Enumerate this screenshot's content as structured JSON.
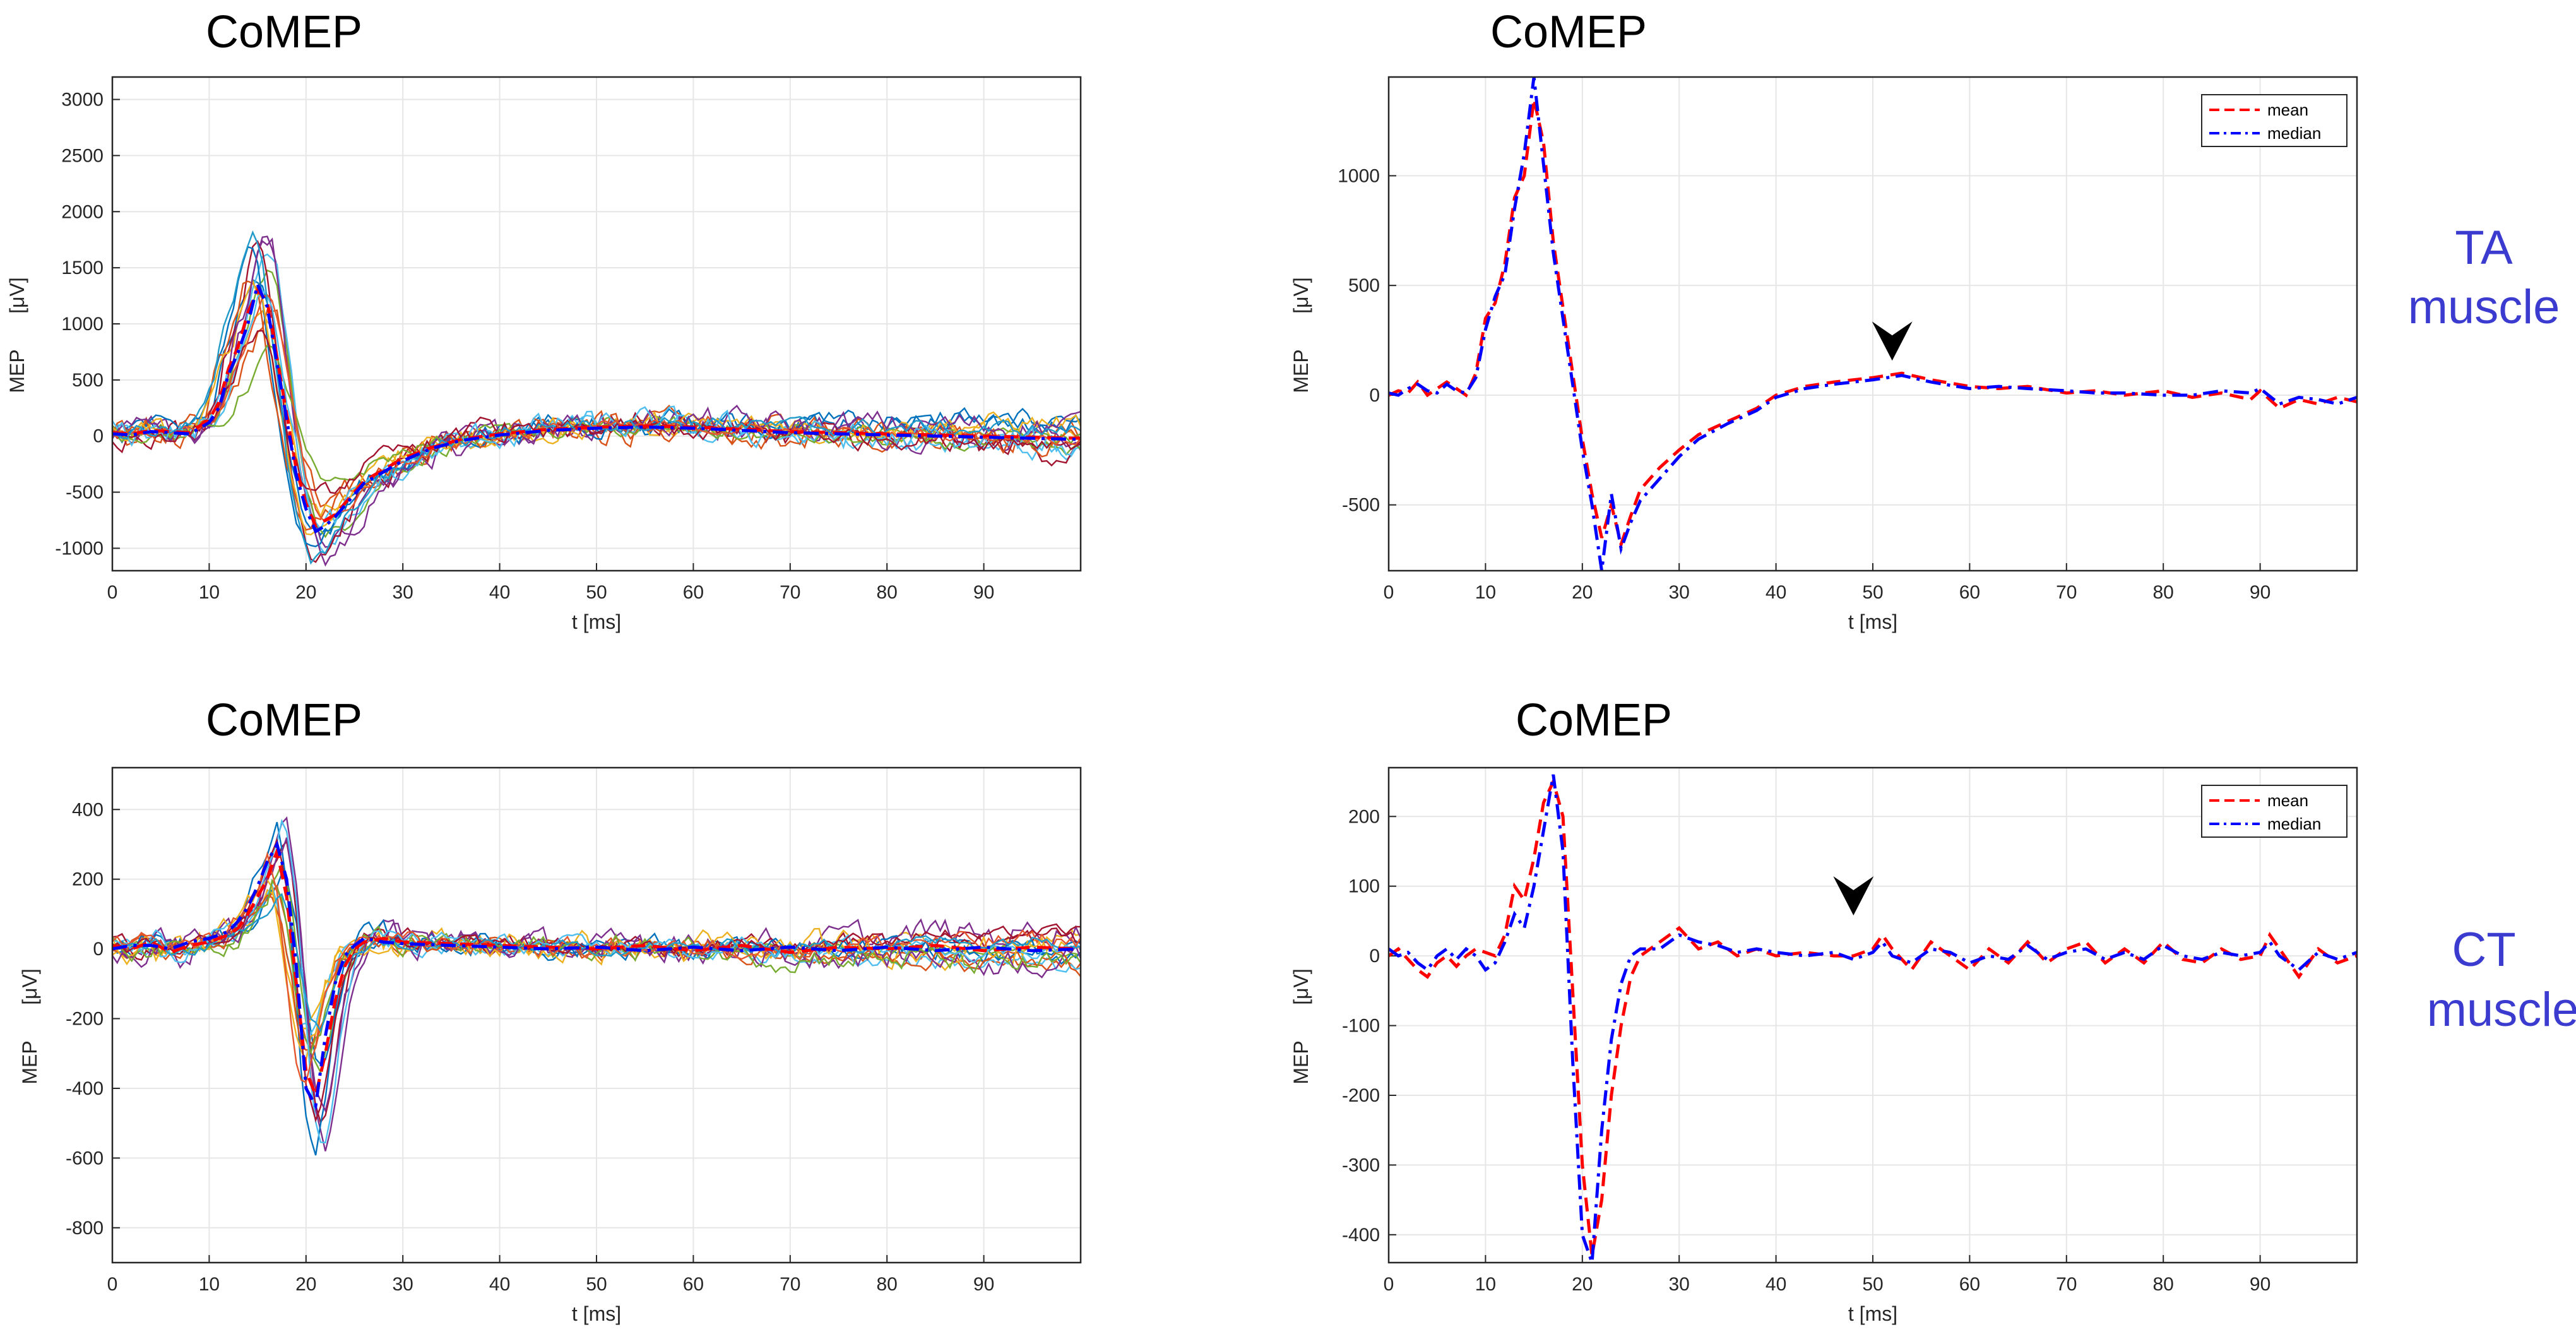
{
  "chart_data": [
    {
      "type": "line",
      "title": "CoMEP",
      "xlabel": "t [ms]",
      "ylabel": "MEP",
      "yunit": "[μV]",
      "xlim": [
        0,
        100
      ],
      "ylim": [
        -1200,
        3200
      ],
      "xticks": [
        0,
        10,
        20,
        30,
        40,
        50,
        60,
        70,
        80,
        90
      ],
      "yticks": [
        -1000,
        -500,
        0,
        500,
        1000,
        1500,
        2000,
        2500,
        3000
      ],
      "grid": true,
      "trace_colors": [
        "#0072bd",
        "#d95319",
        "#edb120",
        "#7e2f8e",
        "#77ac30",
        "#4dbeee",
        "#a2142f",
        "#0072bd",
        "#d95319",
        "#edb120",
        "#7e2f8e",
        "#77ac30",
        "#4dbeee",
        "#a2142f",
        "#e4572e",
        "#1f9ac9"
      ],
      "series": [
        {
          "name": "mean",
          "style": "dashed",
          "color": "#ff0000",
          "x": [
            0,
            2,
            4,
            6,
            8,
            10,
            11,
            12,
            13,
            14,
            15,
            16,
            17,
            18,
            19,
            20,
            21,
            22,
            23,
            24,
            25,
            26,
            28,
            30,
            33,
            36,
            40,
            45,
            50,
            55,
            60,
            65,
            70,
            75,
            80,
            85,
            90,
            95,
            100
          ],
          "y": [
            30,
            20,
            50,
            40,
            30,
            150,
            300,
            600,
            800,
            1100,
            1300,
            1200,
            700,
            200,
            -300,
            -600,
            -800,
            -750,
            -700,
            -600,
            -500,
            -400,
            -300,
            -200,
            -100,
            -30,
            20,
            60,
            80,
            90,
            80,
            60,
            40,
            30,
            20,
            10,
            0,
            -10,
            -20
          ]
        },
        {
          "name": "median",
          "style": "dashdot",
          "color": "#0000ff",
          "x": [
            0,
            2,
            4,
            6,
            8,
            10,
            11,
            12,
            13,
            14,
            15,
            16,
            17,
            18,
            19,
            20,
            21,
            22,
            23,
            24,
            25,
            26,
            28,
            30,
            33,
            36,
            40,
            45,
            50,
            55,
            60,
            65,
            70,
            75,
            80,
            85,
            90,
            95,
            100
          ],
          "y": [
            20,
            10,
            40,
            30,
            20,
            120,
            250,
            550,
            750,
            1000,
            1350,
            1150,
            650,
            150,
            -350,
            -650,
            -850,
            -800,
            -720,
            -620,
            -520,
            -420,
            -320,
            -220,
            -110,
            -40,
            10,
            50,
            70,
            80,
            70,
            50,
            30,
            20,
            10,
            0,
            -10,
            -20,
            -30
          ]
        }
      ]
    },
    {
      "type": "line",
      "title": "CoMEP",
      "xlabel": "t [ms]",
      "ylabel": "MEP",
      "yunit": "[μV]",
      "xlim": [
        0,
        100
      ],
      "ylim": [
        -800,
        1450
      ],
      "xticks": [
        0,
        10,
        20,
        30,
        40,
        50,
        60,
        70,
        80,
        90
      ],
      "yticks": [
        -500,
        0,
        500,
        1000
      ],
      "grid": true,
      "legend": [
        "mean",
        "median"
      ],
      "legend_location": "top-right",
      "annotations": [
        {
          "type": "arrowhead",
          "x": 52,
          "y": 100
        }
      ],
      "series": [
        {
          "name": "mean",
          "style": "dashed",
          "color": "#ff0000",
          "x": [
            0,
            1,
            2,
            3,
            4,
            5,
            6,
            7,
            8,
            9,
            10,
            11,
            12,
            13,
            14,
            15,
            16,
            17,
            18,
            19,
            20,
            21,
            22,
            23,
            24,
            25,
            26,
            28,
            30,
            32,
            35,
            38,
            40,
            43,
            46,
            50,
            53,
            56,
            60,
            63,
            66,
            70,
            73,
            76,
            80,
            83,
            86,
            89,
            90,
            92,
            94,
            96,
            98,
            100
          ],
          "y": [
            0,
            20,
            10,
            60,
            0,
            30,
            60,
            30,
            0,
            100,
            350,
            420,
            600,
            900,
            1000,
            1350,
            1150,
            700,
            400,
            100,
            -200,
            -450,
            -650,
            -500,
            -680,
            -550,
            -430,
            -330,
            -250,
            -180,
            -120,
            -60,
            0,
            40,
            60,
            80,
            100,
            70,
            40,
            30,
            40,
            10,
            20,
            0,
            20,
            -10,
            10,
            -20,
            20,
            -60,
            -20,
            -40,
            -10,
            -30
          ]
        },
        {
          "name": "median",
          "style": "dashdot",
          "color": "#0000ff",
          "x": [
            0,
            1,
            2,
            3,
            4,
            5,
            6,
            7,
            8,
            9,
            10,
            11,
            12,
            13,
            14,
            15,
            16,
            17,
            18,
            19,
            20,
            21,
            22,
            23,
            24,
            25,
            26,
            28,
            30,
            32,
            35,
            38,
            40,
            43,
            46,
            50,
            53,
            56,
            60,
            63,
            66,
            70,
            73,
            76,
            80,
            83,
            86,
            89,
            90,
            92,
            94,
            96,
            98,
            100
          ],
          "y": [
            10,
            0,
            30,
            50,
            20,
            10,
            50,
            20,
            10,
            80,
            300,
            450,
            550,
            850,
            1100,
            1450,
            1050,
            650,
            350,
            50,
            -250,
            -500,
            -800,
            -450,
            -700,
            -580,
            -480,
            -380,
            -280,
            -200,
            -130,
            -70,
            -10,
            30,
            50,
            70,
            90,
            60,
            30,
            40,
            30,
            20,
            10,
            10,
            0,
            0,
            20,
            10,
            30,
            -40,
            -10,
            -20,
            -40,
            -10
          ]
        }
      ]
    },
    {
      "type": "line",
      "title": "CoMEP",
      "xlabel": "t [ms]",
      "ylabel": "MEP",
      "yunit": "[μV]",
      "xlim": [
        0,
        100
      ],
      "ylim": [
        -900,
        520
      ],
      "xticks": [
        0,
        10,
        20,
        30,
        40,
        50,
        60,
        70,
        80,
        90
      ],
      "yticks": [
        -800,
        -600,
        -400,
        -200,
        0,
        200,
        400
      ],
      "grid": true,
      "trace_colors": [
        "#0072bd",
        "#d95319",
        "#edb120",
        "#7e2f8e",
        "#77ac30",
        "#4dbeee",
        "#a2142f",
        "#0072bd",
        "#d95319",
        "#edb120",
        "#7e2f8e",
        "#77ac30",
        "#4dbeee",
        "#a2142f",
        "#e4572e",
        "#1f9ac9"
      ],
      "series": [
        {
          "name": "mean",
          "style": "dashed",
          "color": "#ff0000",
          "x": [
            0,
            2,
            4,
            6,
            8,
            10,
            12,
            13,
            14,
            15,
            16,
            17,
            18,
            19,
            20,
            21,
            22,
            23,
            24,
            25,
            26,
            28,
            30,
            35,
            40,
            45,
            50,
            55,
            60,
            65,
            70,
            75,
            80,
            85,
            90,
            95,
            100
          ],
          "y": [
            10,
            0,
            20,
            -10,
            10,
            20,
            40,
            60,
            100,
            150,
            200,
            280,
            150,
            -100,
            -350,
            -420,
            -300,
            -150,
            -50,
            0,
            20,
            30,
            20,
            15,
            10,
            5,
            0,
            10,
            -5,
            10,
            -10,
            5,
            0,
            10,
            -5,
            5,
            0
          ]
        },
        {
          "name": "median",
          "style": "dashdot",
          "color": "#0000ff",
          "x": [
            0,
            2,
            4,
            6,
            8,
            10,
            12,
            13,
            14,
            15,
            16,
            17,
            18,
            19,
            20,
            21,
            22,
            23,
            24,
            25,
            26,
            28,
            30,
            35,
            40,
            45,
            50,
            55,
            60,
            65,
            70,
            75,
            80,
            85,
            90,
            95,
            100
          ],
          "y": [
            0,
            10,
            10,
            0,
            20,
            30,
            50,
            80,
            120,
            180,
            250,
            300,
            200,
            -50,
            -400,
            -450,
            -250,
            -100,
            -20,
            10,
            30,
            20,
            15,
            10,
            5,
            0,
            5,
            -5,
            5,
            -5,
            5,
            -5,
            5,
            -5,
            5,
            -5,
            0
          ]
        }
      ]
    },
    {
      "type": "line",
      "title": "CoMEP",
      "xlabel": "t [ms]",
      "ylabel": "MEP",
      "yunit": "[μV]",
      "xlim": [
        0,
        100
      ],
      "ylim": [
        -440,
        270
      ],
      "xticks": [
        0,
        10,
        20,
        30,
        40,
        50,
        60,
        70,
        80,
        90
      ],
      "yticks": [
        -400,
        -300,
        -200,
        -100,
        0,
        100,
        200
      ],
      "grid": true,
      "legend": [
        "mean",
        "median"
      ],
      "legend_location": "top-right",
      "annotations": [
        {
          "type": "arrowhead",
          "x": 48,
          "y": 40
        }
      ],
      "series": [
        {
          "name": "mean",
          "style": "dashed",
          "color": "#ff0000",
          "x": [
            0,
            1,
            2,
            3,
            4,
            5,
            6,
            7,
            8,
            9,
            10,
            11,
            12,
            13,
            14,
            15,
            16,
            17,
            18,
            19,
            20,
            21,
            22,
            23,
            24,
            25,
            26,
            28,
            30,
            32,
            34,
            36,
            38,
            40,
            43,
            46,
            48,
            50,
            51,
            52,
            54,
            56,
            58,
            60,
            62,
            64,
            66,
            68,
            70,
            72,
            74,
            76,
            78,
            80,
            82,
            84,
            86,
            88,
            90,
            91,
            92,
            94,
            96,
            98,
            100
          ],
          "y": [
            0,
            10,
            -5,
            -20,
            -30,
            -10,
            0,
            -15,
            0,
            10,
            5,
            0,
            30,
            100,
            80,
            140,
            220,
            250,
            200,
            -50,
            -300,
            -430,
            -350,
            -200,
            -100,
            -30,
            0,
            20,
            40,
            10,
            20,
            0,
            10,
            0,
            5,
            0,
            0,
            10,
            30,
            10,
            -20,
            20,
            0,
            -20,
            10,
            -10,
            20,
            -10,
            10,
            20,
            -10,
            10,
            -10,
            20,
            -5,
            -10,
            10,
            -5,
            0,
            30,
            10,
            -30,
            10,
            -10,
            0
          ]
        },
        {
          "name": "median",
          "style": "dashdot",
          "color": "#0000ff",
          "x": [
            0,
            1,
            2,
            3,
            4,
            5,
            6,
            7,
            8,
            9,
            10,
            11,
            12,
            13,
            14,
            15,
            16,
            17,
            18,
            19,
            20,
            21,
            22,
            23,
            24,
            25,
            26,
            28,
            30,
            32,
            34,
            36,
            38,
            40,
            43,
            46,
            48,
            50,
            51,
            52,
            54,
            56,
            58,
            60,
            62,
            64,
            66,
            68,
            70,
            72,
            74,
            76,
            78,
            80,
            82,
            84,
            86,
            88,
            90,
            91,
            92,
            94,
            96,
            98,
            100
          ],
          "y": [
            10,
            0,
            5,
            -10,
            -20,
            0,
            10,
            -5,
            10,
            0,
            -20,
            -10,
            20,
            60,
            40,
            100,
            180,
            260,
            150,
            -150,
            -400,
            -440,
            -250,
            -120,
            -40,
            0,
            10,
            10,
            30,
            20,
            15,
            5,
            10,
            5,
            0,
            5,
            -5,
            5,
            20,
            0,
            -10,
            10,
            5,
            -10,
            0,
            -5,
            15,
            -5,
            5,
            10,
            -5,
            5,
            -5,
            15,
            0,
            -5,
            5,
            0,
            5,
            20,
            0,
            -20,
            5,
            -5,
            5
          ]
        }
      ]
    }
  ],
  "muscle_labels": [
    {
      "line1": "TA",
      "line2": "muscle"
    },
    {
      "line1": "CT",
      "line2": "muscle"
    }
  ],
  "colors": {
    "mean": "#ff0000",
    "median": "#0000ff",
    "muscle_label": "#3b3bd0",
    "grid": "#e6e6e6"
  }
}
